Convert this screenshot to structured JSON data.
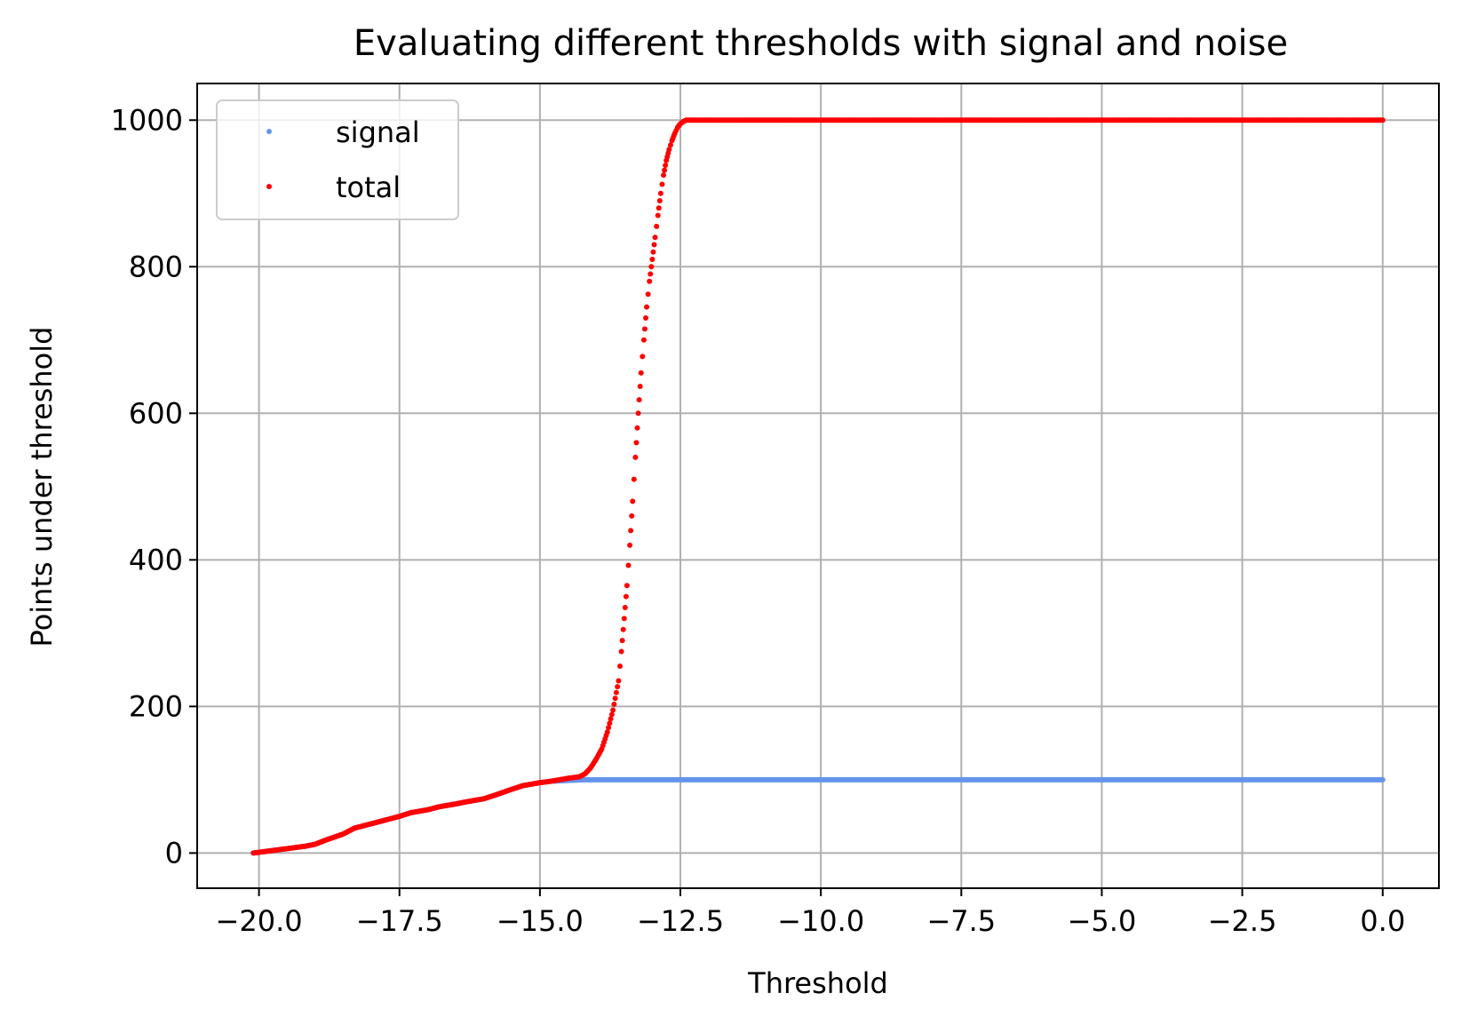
{
  "chart_data": {
    "type": "scatter",
    "title": "Evaluating different thresholds with signal and noise",
    "xlabel": "Threshold",
    "ylabel": "Points under threshold",
    "xlim": [
      -21.1,
      1.0
    ],
    "ylim": [
      -48,
      1050
    ],
    "xticks": [
      -20.0,
      -17.5,
      -15.0,
      -12.5,
      -10.0,
      -7.5,
      -5.0,
      -2.5,
      0.0
    ],
    "xtick_labels": [
      "−20.0",
      "−17.5",
      "−15.0",
      "−12.5",
      "−10.0",
      "−7.5",
      "−5.0",
      "−2.5",
      "0.0"
    ],
    "yticks": [
      0,
      200,
      400,
      600,
      800,
      1000
    ],
    "ytick_labels": [
      "0",
      "200",
      "400",
      "600",
      "800",
      "1000"
    ],
    "grid": true,
    "legend_position": "upper-left",
    "series": [
      {
        "name": "signal",
        "color": "#6495ed",
        "x": [
          -20.1,
          -19.8,
          -19.5,
          -19.2,
          -19.0,
          -18.8,
          -18.5,
          -18.3,
          -18.0,
          -17.8,
          -17.5,
          -17.3,
          -17.0,
          -16.8,
          -16.5,
          -16.3,
          -16.0,
          -15.8,
          -15.5,
          -15.3,
          -15.0,
          -14.8,
          -14.5,
          -14.2,
          -14.0,
          -13.5,
          -13.0,
          -12.5,
          -12.0,
          -11.0,
          -10.0,
          -9.0,
          -8.0,
          -7.0,
          -6.0,
          -5.0,
          -4.0,
          -3.0,
          -2.0,
          -1.0,
          0.0
        ],
        "y": [
          0,
          3,
          6,
          9,
          12,
          18,
          26,
          34,
          40,
          44,
          50,
          55,
          59,
          63,
          67,
          70,
          74,
          79,
          87,
          92,
          96,
          98,
          99,
          100,
          100,
          100,
          100,
          100,
          100,
          100,
          100,
          100,
          100,
          100,
          100,
          100,
          100,
          100,
          100,
          100,
          100
        ]
      },
      {
        "name": "total",
        "color": "#ff0000",
        "x": [
          -20.1,
          -19.8,
          -19.5,
          -19.2,
          -19.0,
          -18.8,
          -18.5,
          -18.3,
          -18.0,
          -17.8,
          -17.5,
          -17.3,
          -17.0,
          -16.8,
          -16.5,
          -16.3,
          -16.0,
          -15.8,
          -15.5,
          -15.3,
          -15.0,
          -14.8,
          -14.5,
          -14.3,
          -14.2,
          -14.1,
          -14.0,
          -13.9,
          -13.8,
          -13.7,
          -13.6,
          -13.55,
          -13.5,
          -13.45,
          -13.4,
          -13.35,
          -13.3,
          -13.25,
          -13.2,
          -13.15,
          -13.1,
          -13.05,
          -13.0,
          -12.95,
          -12.9,
          -12.85,
          -12.8,
          -12.75,
          -12.7,
          -12.65,
          -12.6,
          -12.55,
          -12.5,
          -12.45,
          -12.4,
          -12.3,
          -12.0,
          -11.0,
          -10.0,
          -9.0,
          -8.0,
          -7.0,
          -6.0,
          -5.0,
          -4.0,
          -3.0,
          -2.0,
          -1.0,
          0.0
        ],
        "y": [
          0,
          3,
          6,
          9,
          12,
          18,
          26,
          34,
          40,
          44,
          50,
          55,
          59,
          63,
          67,
          70,
          74,
          79,
          87,
          92,
          96,
          98,
          102,
          104,
          108,
          116,
          128,
          142,
          165,
          195,
          235,
          275,
          320,
          365,
          420,
          480,
          540,
          600,
          655,
          700,
          745,
          780,
          810,
          840,
          870,
          900,
          925,
          945,
          960,
          972,
          982,
          990,
          995,
          998,
          1000,
          1000,
          1000,
          1000,
          1000,
          1000,
          1000,
          1000,
          1000,
          1000,
          1000,
          1000,
          1000,
          1000,
          1000
        ]
      }
    ]
  }
}
